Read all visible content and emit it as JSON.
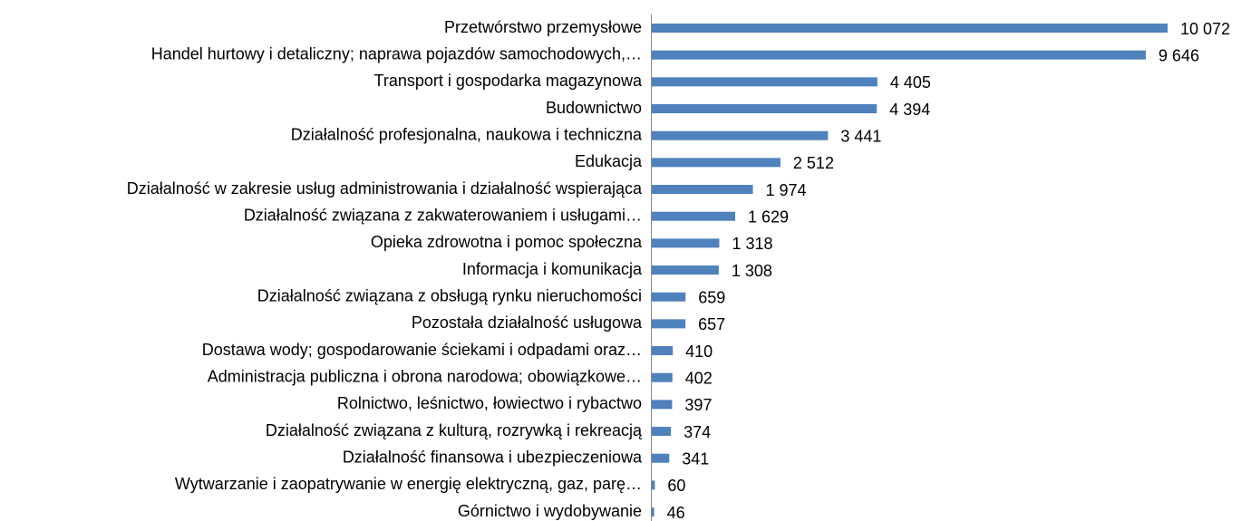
{
  "chart_data": {
    "type": "bar",
    "orientation": "horizontal",
    "color": "#4f81bd",
    "categories": [
      "Przetwórstwo przemysłowe",
      "Handel hurtowy i detaliczny; naprawa pojazdów samochodowych,…",
      "Transport i gospodarka magazynowa",
      "Budownictwo",
      "Działalność profesjonalna, naukowa i techniczna",
      "Edukacja",
      "Działalność w zakresie usług administrowania i działalność wspierająca",
      "Działalność związana z zakwaterowaniem i usługami…",
      "Opieka zdrowotna i pomoc społeczna",
      "Informacja i komunikacja",
      "Działalność związana z obsługą rynku nieruchomości",
      "Pozostała działalność usługowa",
      "Dostawa wody; gospodarowanie ściekami i odpadami oraz…",
      "Administracja publiczna i obrona narodowa; obowiązkowe…",
      "Rolnictwo, leśnictwo, łowiectwo i rybactwo",
      "Działalność związana z kulturą, rozrywką i rekreacją",
      "Działalność finansowa i ubezpieczeniowa",
      "Wytwarzanie i zaopatrywanie w energię elektryczną, gaz, parę…",
      "Górnictwo i wydobywanie"
    ],
    "values": [
      10072,
      9646,
      4405,
      4394,
      3441,
      2512,
      1974,
      1629,
      1318,
      1308,
      659,
      657,
      410,
      402,
      397,
      374,
      341,
      60,
      46
    ],
    "value_labels": [
      "10 072",
      "9 646",
      "4 405",
      "4 394",
      "3 441",
      "2 512",
      "1 974",
      "1 629",
      "1 318",
      "1 308",
      "659",
      "657",
      "410",
      "402",
      "397",
      "374",
      "341",
      "60",
      "46"
    ]
  }
}
